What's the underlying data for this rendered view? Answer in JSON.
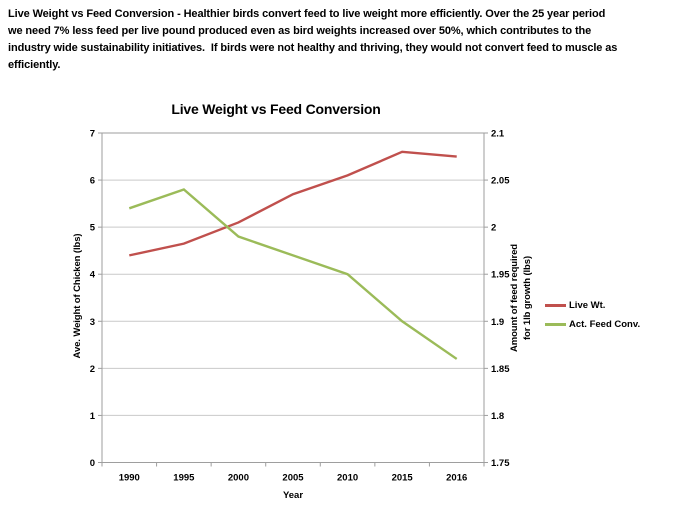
{
  "header": {
    "lines": [
      "Live Weight vs Feed Conversion - Healthier birds convert feed to live weight more efficiently. Over the 25 year period",
      "we need 7% less feed per live pound produced even as bird weights increased over 50%, which contributes to the",
      "industry wide sustainability initiatives.  If birds were not healthy and thriving, they would not convert feed to muscle as",
      "efficiently."
    ]
  },
  "chart_data": {
    "type": "line",
    "title": "Live Weight vs Feed Conversion",
    "xlabel": "Year",
    "ylabel_left": "Ave. Weight of Chicken (lbs)",
    "ylabel_right_line1": "Amount of feed required",
    "ylabel_right_line2": "for 1lb growth (lbs)",
    "categories": [
      "1990",
      "1995",
      "2000",
      "2005",
      "2010",
      "2015",
      "2016"
    ],
    "left_axis_ticks_top_to_bottom": [
      "7",
      "6",
      "5",
      "4",
      "3",
      "2",
      "1",
      "0"
    ],
    "right_axis_ticks_top_to_bottom": [
      "2.1",
      "2.05",
      "2",
      "1.95",
      "1.9",
      "1.85",
      "1.8",
      "1.75"
    ],
    "ylim_left": [
      0,
      7
    ],
    "ylim_right": [
      1.75,
      2.1
    ],
    "grid": true,
    "legend_position": "right",
    "series": [
      {
        "name": "Live Wt.",
        "axis": "left",
        "color": "#C0504D",
        "values": [
          4.4,
          4.65,
          5.1,
          5.7,
          6.1,
          6.6,
          6.5
        ]
      },
      {
        "name": "Act. Feed Conv.",
        "axis": "right",
        "color": "#9BBB59",
        "values": [
          2.02,
          2.04,
          1.99,
          1.97,
          1.95,
          1.9,
          1.86
        ]
      }
    ]
  },
  "colors": {
    "gridline": "#c9c9c9",
    "axis": "#9e9e9e",
    "series_red": "#C0504D",
    "series_green": "#9BBB59",
    "text": "#000000",
    "background": "#ffffff"
  }
}
